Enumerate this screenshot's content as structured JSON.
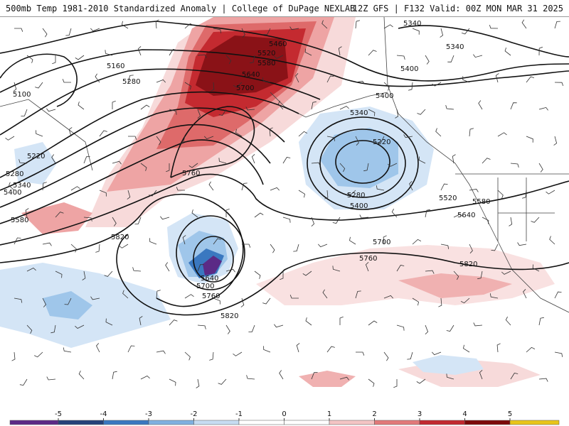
{
  "header": {
    "title_left": "500mb Temp 1981-2010 Standardized Anomaly | College of DuPage NEXLAB",
    "title_right": "12Z GFS | F132 Valid: 00Z MON MAR 31 2025"
  },
  "map": {
    "contour_labels": [
      "5340",
      "5340",
      "5460",
      "5520",
      "5580",
      "5640",
      "5700",
      "5400",
      "5160",
      "5280",
      "5100",
      "5400",
      "5340",
      "5220",
      "5220",
      "5280",
      "5340",
      "5400",
      "5280",
      "5400",
      "5580",
      "5760",
      "5520",
      "5640",
      "5580",
      "5820",
      "5700",
      "5760",
      "5820",
      "5640",
      "5700",
      "5760",
      "5820"
    ]
  },
  "colorbar": {
    "ticks": [
      "-5",
      "-4",
      "-3",
      "-2",
      "-1",
      "0",
      "1",
      "2",
      "3",
      "4",
      "5"
    ],
    "colors": [
      "#5b2a86",
      "#25427a",
      "#3a78c0",
      "#7fb0e0",
      "#c6dcf2",
      "#ffffff",
      "#ffffff",
      "#f4c4c4",
      "#e27a7a",
      "#c22a30",
      "#7c0a0a",
      "#e8c51a"
    ]
  }
}
